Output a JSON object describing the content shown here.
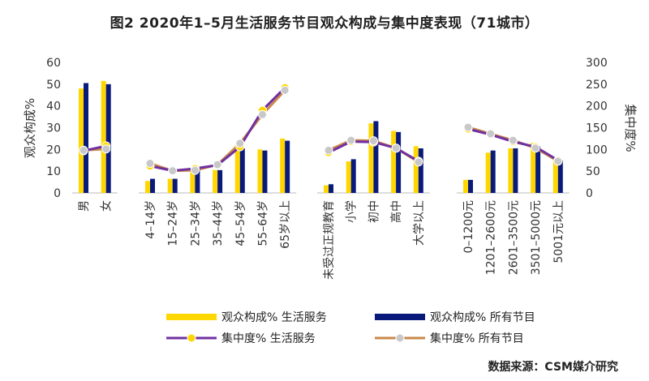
{
  "chart_data": {
    "type": "bar+line",
    "title": "图2  2020年1–5月生活服务节目观众构成与集中度表现（71城市）",
    "ylabel_left": "观众构成%",
    "ylabel_right": "集中度%",
    "ylim_left": [
      0,
      60
    ],
    "ylim_right": [
      0,
      300
    ],
    "yticks_left": [
      "0",
      "10",
      "20",
      "30",
      "40",
      "50",
      "60"
    ],
    "yticks_right": [
      "0",
      "50",
      "100",
      "150",
      "200",
      "250",
      "300"
    ],
    "groups": [
      {
        "categories": [
          "男",
          "女"
        ],
        "bar_life": [
          48,
          51.5
        ],
        "bar_all": [
          50.5,
          50
        ],
        "line_life": [
          97,
          108
        ],
        "line_all": [
          98,
          101
        ]
      },
      {
        "categories": [
          "4–14岁",
          "15–24岁",
          "25–34岁",
          "35–44岁",
          "45–54岁",
          "55–64岁",
          "65岁以上"
        ],
        "bar_life": [
          5.5,
          6.5,
          11.5,
          10.5,
          22,
          20,
          25
        ],
        "bar_all": [
          6.5,
          6.5,
          12,
          10.5,
          20.5,
          19.5,
          24
        ],
        "line_life": [
          62,
          51,
          56,
          64,
          106,
          190,
          242
        ],
        "line_all": [
          68,
          51,
          52,
          65,
          114,
          180,
          236
        ]
      },
      {
        "categories": [
          "未受过正规教育",
          "小学",
          "初中",
          "高中",
          "大学以上"
        ],
        "bar_life": [
          3.5,
          14.5,
          32,
          28.5,
          21.5
        ],
        "bar_all": [
          4,
          15.5,
          33,
          28,
          20.5
        ],
        "line_life": [
          93,
          118,
          117,
          103,
          73
        ],
        "line_all": [
          98,
          121,
          120,
          103,
          71
        ]
      },
      {
        "categories": [
          "0–1200元",
          "1201–2600元",
          "2601–3500元",
          "3501–5000元",
          "5001元以上"
        ],
        "bar_life": [
          6,
          18.5,
          20.5,
          23,
          16
        ],
        "bar_all": [
          6,
          19.5,
          20.5,
          21.5,
          15
        ],
        "line_life": [
          147,
          134,
          118,
          106,
          75
        ],
        "line_all": [
          151,
          136,
          121,
          103,
          73
        ]
      }
    ],
    "legend": [
      {
        "label": "观众构成%    生活服务",
        "kind": "bar",
        "color": "#FFD700"
      },
      {
        "label": "观众构成%    所有节目",
        "kind": "bar",
        "color": "#0A1A7A"
      },
      {
        "label": "集中度% 生活服务",
        "kind": "line",
        "color": "#7030A0",
        "marker": "#FFD700"
      },
      {
        "label": "集中度% 所有节目",
        "kind": "line",
        "color": "#C8894A",
        "marker": "#C8C8C8"
      }
    ],
    "colors": {
      "bar_life": "#FFD700",
      "bar_all": "#0A1A7A",
      "line_life": "#7030A0",
      "line_life_marker": "#FFD700",
      "line_all": "#C8894A",
      "line_all_marker": "#C8C8C8"
    }
  },
  "source": "数据来源：CSM媒介研究"
}
